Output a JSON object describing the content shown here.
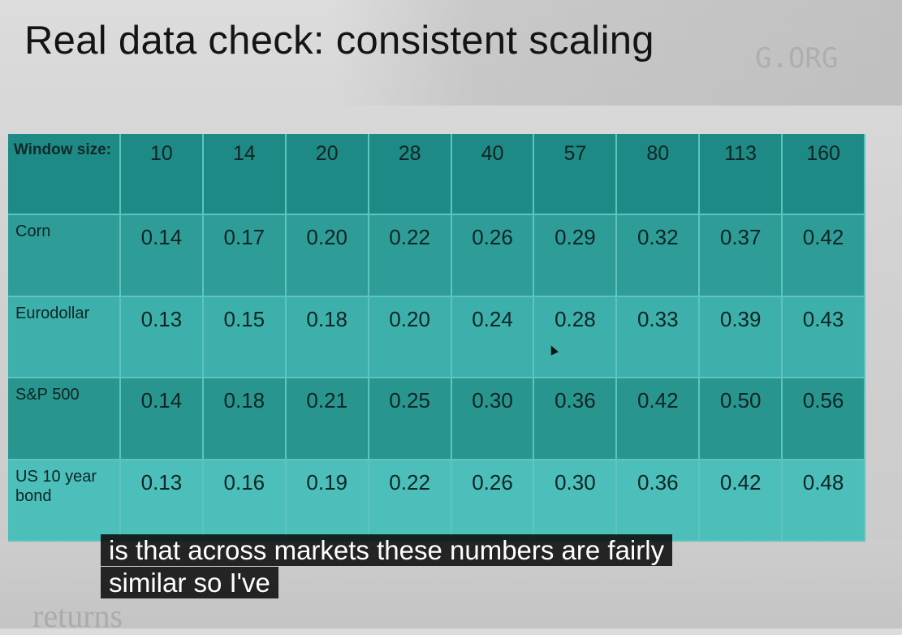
{
  "slide": {
    "title": "Real data check: consistent scaling",
    "watermark": "G.ORG",
    "background_word": "returns"
  },
  "table": {
    "header_label": "Window size:",
    "window_sizes": [
      "10",
      "14",
      "20",
      "28",
      "40",
      "57",
      "80",
      "113",
      "160"
    ],
    "rows": [
      {
        "label": "Corn",
        "values": [
          "0.14",
          "0.17",
          "0.20",
          "0.22",
          "0.26",
          "0.29",
          "0.32",
          "0.37",
          "0.42"
        ]
      },
      {
        "label": "Eurodollar",
        "values": [
          "0.13",
          "0.15",
          "0.18",
          "0.20",
          "0.24",
          "0.28",
          "0.33",
          "0.39",
          "0.43"
        ]
      },
      {
        "label": "S&P 500",
        "values": [
          "0.14",
          "0.18",
          "0.21",
          "0.25",
          "0.30",
          "0.36",
          "0.42",
          "0.50",
          "0.56"
        ]
      },
      {
        "label": "US 10 year bond",
        "values": [
          "0.13",
          "0.16",
          "0.19",
          "0.22",
          "0.26",
          "0.30",
          "0.36",
          "0.42",
          "0.48"
        ]
      }
    ]
  },
  "caption": {
    "text": "is that across markets these numbers are fairly similar so I've"
  },
  "colors": {
    "header_row": "#1e8a86",
    "row_1": "#2e9d98",
    "row_2": "#3db0ab",
    "row_3": "#29958f",
    "row_4": "#4cbfba",
    "grid_lines": "#5fc3be"
  },
  "icons": {
    "pointer": "mouse-cursor-icon"
  }
}
